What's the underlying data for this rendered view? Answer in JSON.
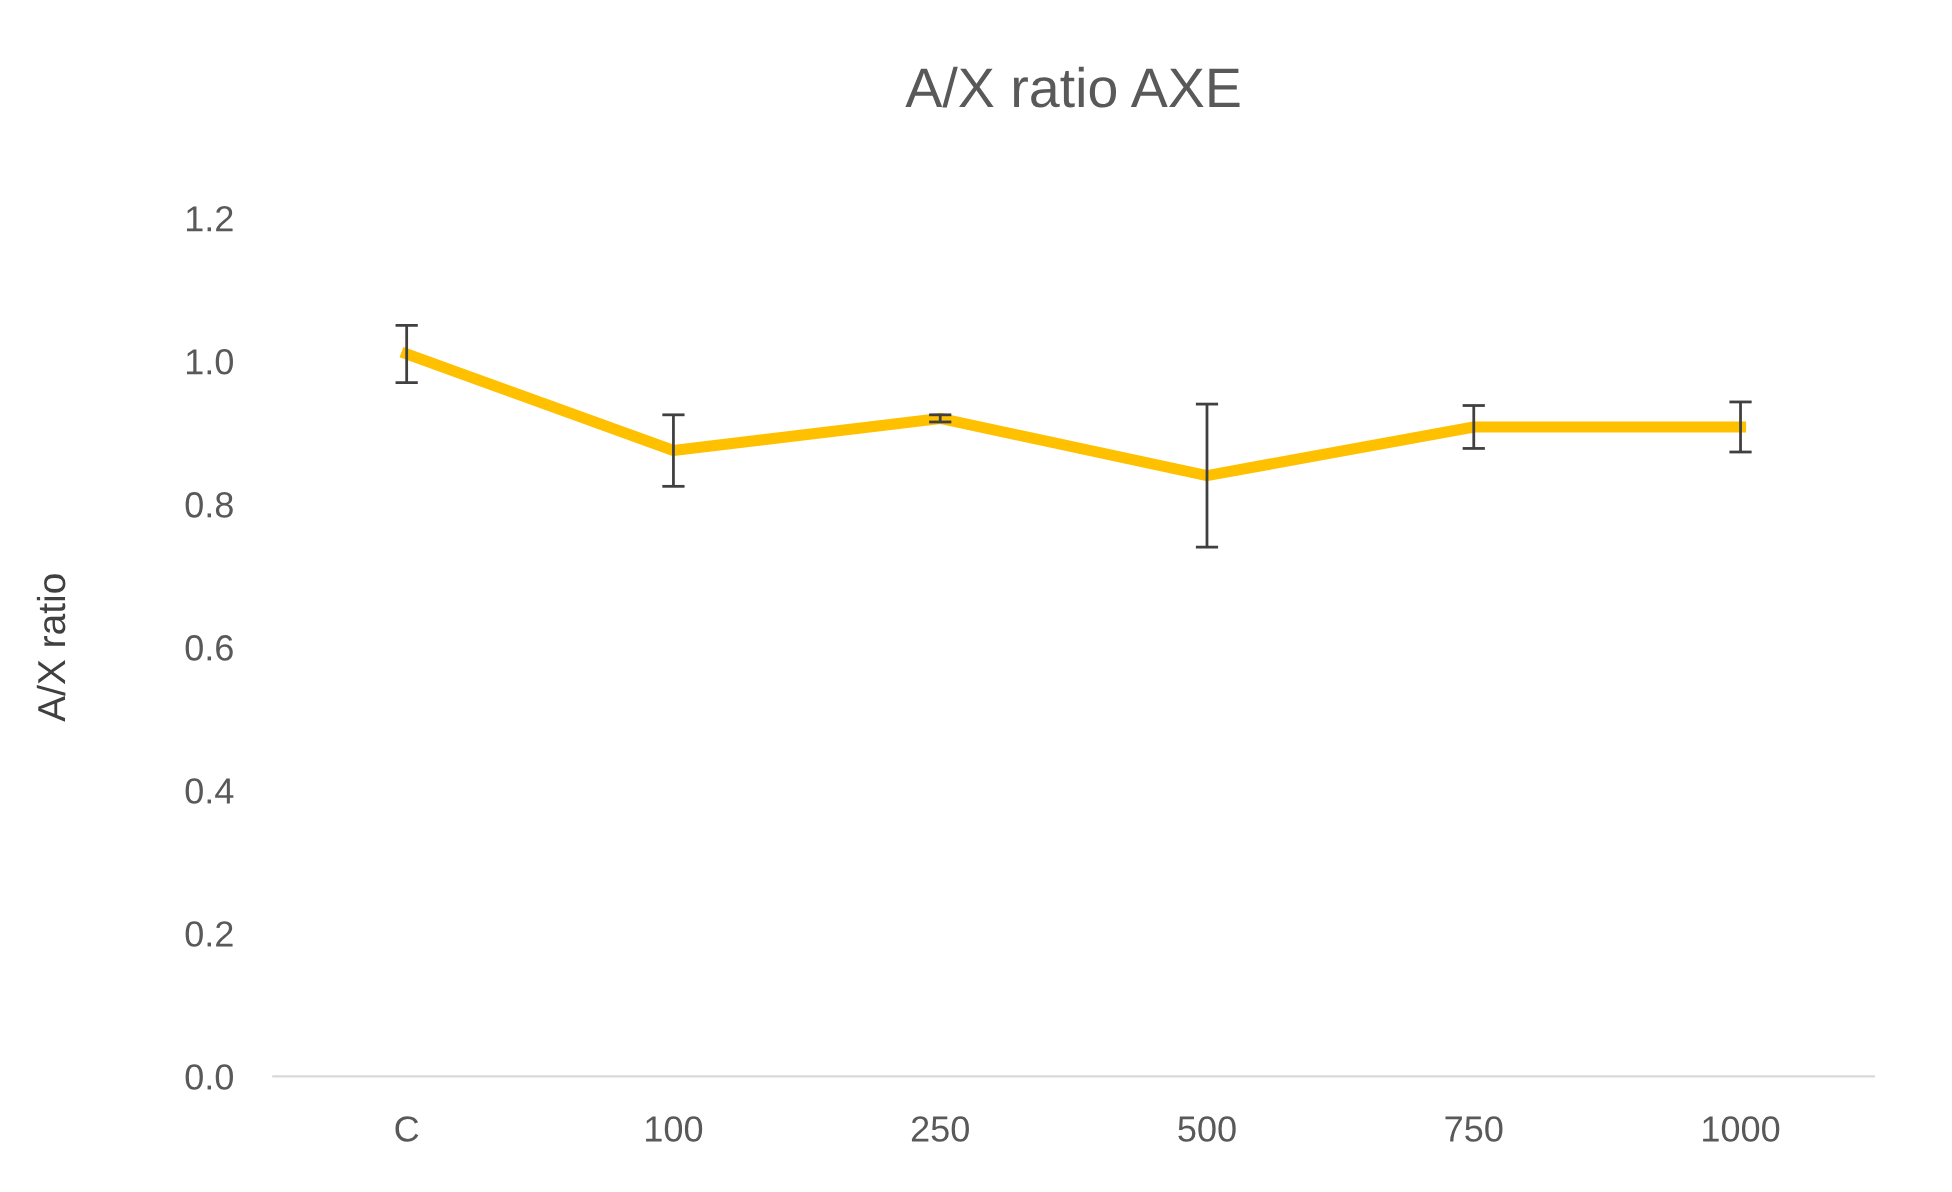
{
  "chart_data": {
    "type": "line",
    "title": "A/X ratio AXE",
    "ylabel": "A/X ratio",
    "categories": [
      "C",
      "100",
      "250",
      "500",
      "750",
      "1000"
    ],
    "series": [
      {
        "color": "#ffc000",
        "values": [
          1.01,
          0.875,
          0.92,
          0.84,
          0.908,
          0.908
        ],
        "errors": [
          0.04,
          0.05,
          0.005,
          0.1,
          0.03,
          0.035
        ]
      }
    ],
    "ylim": [
      0,
      1.2
    ],
    "yticks": [
      {
        "value": 0,
        "label": "0.0"
      },
      {
        "value": 0.2,
        "label": "0.2"
      },
      {
        "value": 0.4,
        "label": "0.4"
      },
      {
        "value": 0.6,
        "label": "0.6"
      },
      {
        "value": 0.8,
        "label": "0.8"
      },
      {
        "value": 1.0,
        "label": "1.0"
      },
      {
        "value": 1.2,
        "label": "1.2"
      }
    ],
    "grid": false,
    "legend": false,
    "marker": "none",
    "line_style": "solid"
  }
}
